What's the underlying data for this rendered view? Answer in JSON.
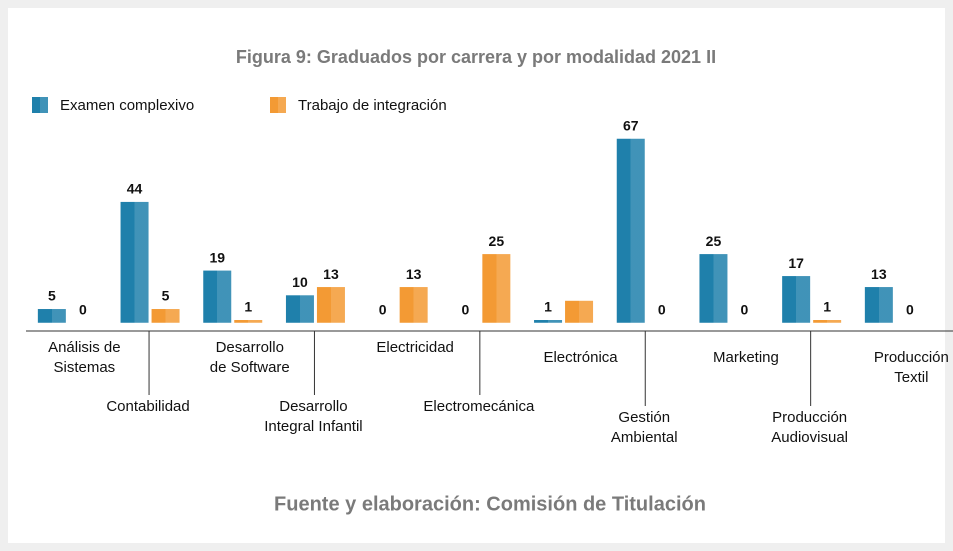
{
  "chart_data": {
    "type": "bar",
    "title": "Figura 9: Graduados por carrera y por modalidad 2021 II",
    "source": "Fuente y elaboración: Comisión de Titulación",
    "categories": [
      "Análisis de\nSistemas",
      "Contabilidad",
      "Desarrollo\nde Software",
      "Desarrollo\nIntegral Infantil",
      "Electricidad",
      "Electromecánica",
      "Electrónica",
      "Gestión\nAmbiental",
      "Marketing",
      "Producción\nAudiovisual",
      "Producción\nTextil"
    ],
    "series": [
      {
        "name": "Examen complexivo",
        "color": "#1f80ab",
        "values": [
          5,
          44,
          19,
          10,
          0,
          0,
          1,
          67,
          25,
          17,
          13
        ]
      },
      {
        "name": "Trabajo de integración",
        "color": "#f39a34",
        "values": [
          0,
          5,
          1,
          13,
          13,
          25,
          8,
          0,
          0,
          1,
          0
        ],
        "value_labels": [
          "0",
          "5",
          "1",
          "13",
          "13",
          "25",
          null,
          "0",
          "0",
          "1",
          "0"
        ]
      }
    ],
    "ylim": [
      -3,
      68
    ],
    "legend": "top-left"
  }
}
